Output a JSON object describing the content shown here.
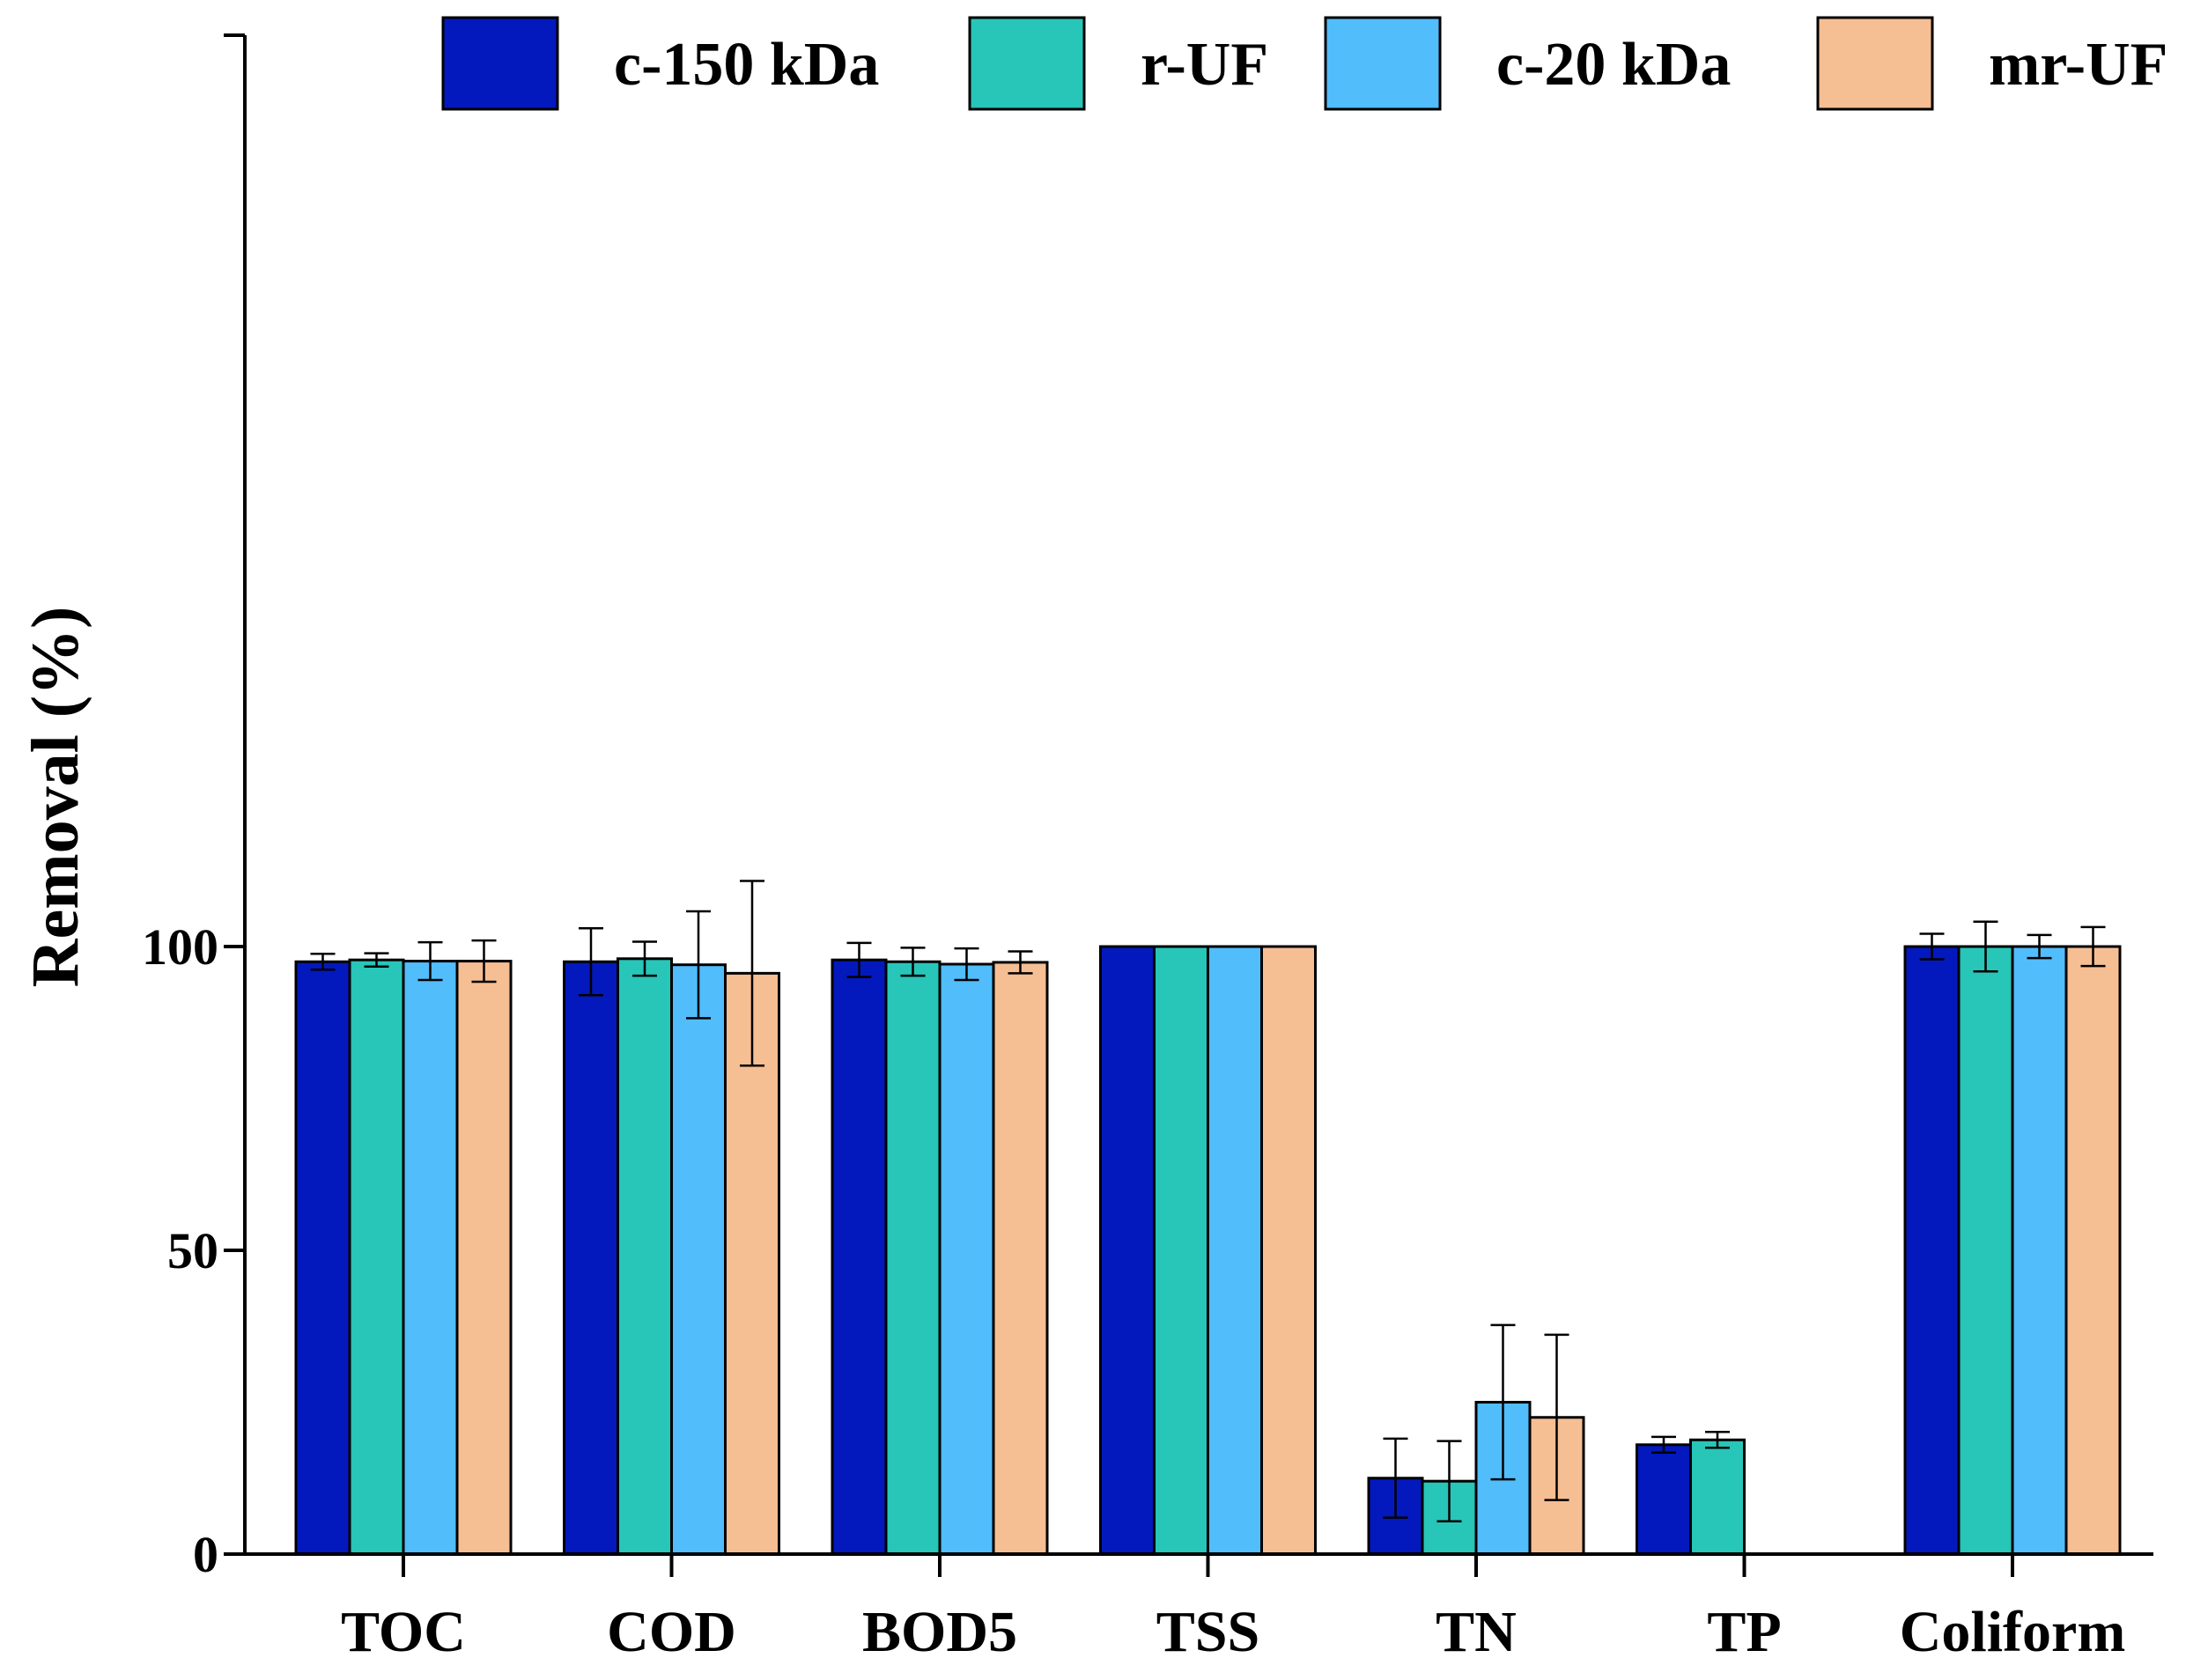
{
  "chart_data": {
    "type": "bar",
    "title": "",
    "xlabel": "",
    "ylabel": "Removal (%)",
    "ylim": [
      0,
      125
    ],
    "yticks": [
      0,
      50,
      100
    ],
    "grid": false,
    "legend_position": "top",
    "categories": [
      "TOC",
      "COD",
      "BOD5",
      "TSS",
      "TN",
      "TP",
      "Coliform"
    ],
    "series": [
      {
        "name": "c-150 kDa",
        "color": "#0319bd",
        "values": [
          97.5,
          97.5,
          97.8,
          100,
          12.5,
          18.0,
          100
        ],
        "errors": [
          1.3,
          5.5,
          2.8,
          0,
          6.5,
          1.3,
          2.1
        ]
      },
      {
        "name": "r-UF",
        "color": "#27c6b8",
        "values": [
          97.8,
          98.0,
          97.5,
          100,
          12.0,
          18.8,
          100
        ],
        "errors": [
          1.1,
          2.8,
          2.3,
          0,
          6.6,
          1.3,
          4.1
        ]
      },
      {
        "name": "c-20 kDa",
        "color": "#51bdfb",
        "values": [
          97.6,
          97.0,
          97.1,
          100,
          25.0,
          null,
          100
        ],
        "errors": [
          3.1,
          8.8,
          2.6,
          0,
          12.7,
          null,
          1.9
        ]
      },
      {
        "name": "mr-UF",
        "color": "#f6be93",
        "values": [
          97.6,
          95.6,
          97.4,
          100,
          22.5,
          null,
          100
        ],
        "errors": [
          3.4,
          15.2,
          1.8,
          0,
          13.6,
          null,
          3.2
        ]
      }
    ]
  }
}
